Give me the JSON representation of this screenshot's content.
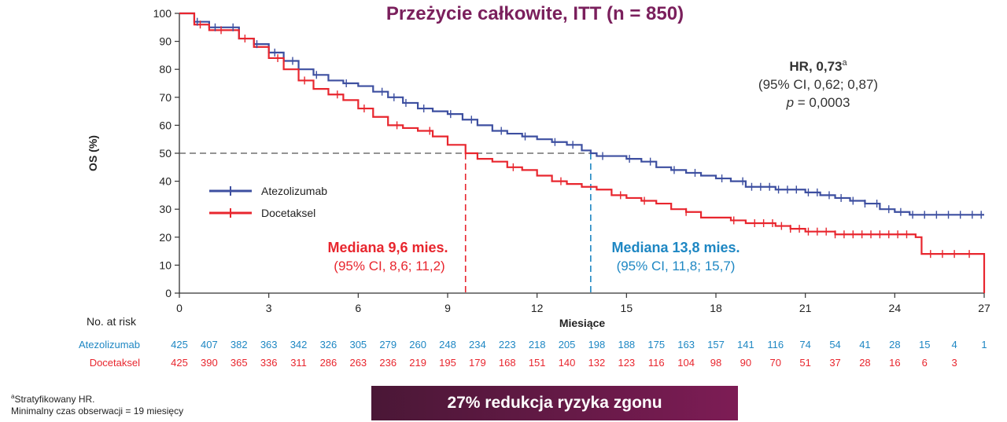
{
  "chart_data": {
    "type": "line",
    "title": "Przeżycie całkowite, ITT (n = 850)",
    "xlabel": "Miesiące",
    "ylabel": "OS (%)",
    "xlim": [
      0,
      27
    ],
    "ylim": [
      0,
      100
    ],
    "x_ticks": [
      0,
      3,
      6,
      9,
      12,
      15,
      18,
      21,
      24,
      27
    ],
    "y_ticks": [
      0,
      10,
      20,
      30,
      40,
      50,
      60,
      70,
      80,
      90,
      100
    ],
    "legend_position": "center-left",
    "series": [
      {
        "name": "Atezolizumab",
        "color": "#3d4fa0",
        "x": [
          0,
          0.5,
          1,
          2,
          2.5,
          3,
          3.5,
          4,
          4.5,
          5,
          5.5,
          6,
          6.5,
          7,
          7.5,
          8,
          8.5,
          9,
          9.5,
          10,
          10.5,
          11,
          11.5,
          12,
          12.5,
          13,
          13.5,
          13.8,
          14,
          14.5,
          15,
          15.5,
          16,
          16.5,
          17,
          17.5,
          18,
          18.5,
          19,
          19.5,
          20,
          20.5,
          21,
          21.5,
          22,
          22.5,
          23,
          23.5,
          24,
          24.5,
          25,
          26,
          27
        ],
        "y": [
          100,
          97,
          95,
          91,
          89,
          86,
          83,
          80,
          78,
          76,
          75,
          74,
          72,
          70,
          68,
          66,
          65,
          64,
          62,
          60,
          58,
          57,
          56,
          55,
          54,
          53,
          51,
          50,
          49,
          49,
          48,
          47,
          45,
          44,
          43,
          42,
          41,
          40,
          38,
          38,
          37,
          37,
          36,
          35,
          34,
          33,
          32,
          30,
          29,
          28,
          28,
          28,
          28
        ]
      },
      {
        "name": "Docetaksel",
        "color": "#e8262e",
        "x": [
          0,
          0.5,
          1,
          2,
          2.5,
          3,
          3.5,
          4,
          4.5,
          5,
          5.5,
          6,
          6.5,
          7,
          7.5,
          8,
          8.5,
          9,
          9.6,
          10,
          10.5,
          11,
          11.5,
          12,
          12.5,
          13,
          13.5,
          14,
          14.5,
          15,
          15.5,
          16,
          16.5,
          17,
          17.5,
          18,
          18.5,
          19,
          19.5,
          20,
          20.5,
          21,
          21.5,
          22,
          22.5,
          23,
          23.5,
          24,
          24.7,
          24.9,
          26,
          26.9,
          27
        ],
        "y": [
          100,
          96,
          94,
          91,
          88,
          84,
          80,
          76,
          73,
          71,
          69,
          66,
          63,
          60,
          59,
          58,
          56,
          53,
          50,
          48,
          47,
          45,
          44,
          42,
          40,
          39,
          38,
          37,
          35,
          34,
          33,
          32,
          30,
          29,
          27,
          27,
          26,
          25,
          25,
          24,
          23,
          22,
          22,
          21,
          21,
          21,
          21,
          21,
          20,
          14,
          14,
          14,
          0
        ]
      }
    ],
    "censor_marks": {
      "Atezolizumab": [
        0.6,
        1.2,
        1.8,
        2.6,
        3.2,
        3.8,
        4.6,
        5.6,
        6.8,
        7.2,
        7.6,
        8.2,
        9.1,
        9.8,
        10.8,
        11.6,
        12.6,
        13.2,
        14.2,
        15.1,
        15.8,
        16.6,
        17.3,
        18.2,
        18.9,
        19.2,
        19.5,
        19.8,
        20.1,
        20.4,
        20.7,
        21.1,
        21.4,
        21.8,
        22.2,
        22.6,
        23.0,
        23.4,
        23.8,
        24.2,
        24.6,
        25.0,
        25.4,
        25.8,
        26.2,
        26.6,
        26.9
      ],
      "Docetaksel": [
        0.7,
        1.4,
        2.2,
        3.3,
        4.2,
        5.3,
        6.2,
        7.3,
        8.4,
        11.2,
        12.8,
        14.8,
        15.6,
        17.0,
        18.6,
        19.3,
        19.6,
        19.9,
        20.2,
        20.5,
        20.8,
        21.1,
        21.4,
        21.7,
        22.0,
        22.3,
        22.6,
        22.9,
        23.2,
        23.5,
        23.8,
        24.1,
        24.4,
        25.2,
        25.6,
        26.0,
        26.5
      ]
    },
    "median_line_y": 50,
    "medians": [
      {
        "name": "Atezolizumab",
        "x": 13.8,
        "label": "Mediana 13,8 mies.",
        "ci": "(95% CI, 11,8; 15,7)",
        "color": "#1e87c3"
      },
      {
        "name": "Docetaksel",
        "x": 9.6,
        "label": "Mediana 9,6 mies.",
        "ci": "(95% CI, 8,6; 11,2)",
        "color": "#e8262e"
      }
    ],
    "annotation": {
      "hr_label": "HR, 0,73",
      "hr_sup": "a",
      "ci": "(95% CI, 0,62; 0,87)",
      "p_label": "p",
      "p_value": " = 0,0003"
    },
    "risk_table": {
      "title": "No. at risk",
      "times": [
        0,
        1,
        2,
        3,
        4,
        5,
        6,
        7,
        8,
        9,
        10,
        11,
        12,
        13,
        14,
        15,
        16,
        17,
        18,
        19,
        20,
        21,
        22,
        23,
        24,
        25,
        26,
        27
      ],
      "rows": [
        {
          "name": "Atezolizumab",
          "color": "#1e87c3",
          "values": [
            425,
            407,
            382,
            363,
            342,
            326,
            305,
            279,
            260,
            248,
            234,
            223,
            218,
            205,
            198,
            188,
            175,
            163,
            157,
            141,
            116,
            74,
            54,
            41,
            28,
            15,
            4,
            1
          ]
        },
        {
          "name": "Docetaksel",
          "color": "#e8262e",
          "values": [
            425,
            390,
            365,
            336,
            311,
            286,
            263,
            236,
            219,
            195,
            179,
            168,
            151,
            140,
            132,
            123,
            116,
            104,
            98,
            90,
            70,
            51,
            37,
            28,
            16,
            6,
            3
          ]
        }
      ]
    }
  },
  "banner": {
    "text": "27% redukcja ryzyka zgonu"
  },
  "footnotes": {
    "sup": "a",
    "line1": "Stratyfikowany HR.",
    "line2": "Minimalny czas obserwacji = 19 miesięcy"
  }
}
